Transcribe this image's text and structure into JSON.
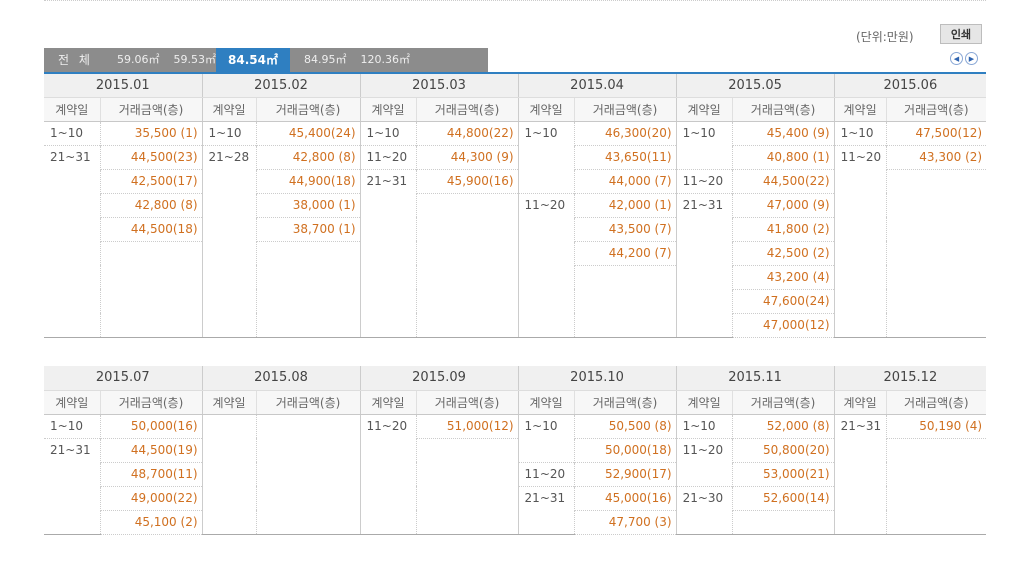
{
  "unit_label": "(단위:만원)",
  "print_label": "인쇄",
  "tabs": [
    {
      "label": "전 체",
      "active": false
    },
    {
      "label": "59.06㎡",
      "active": false
    },
    {
      "label": "59.53㎡",
      "active": false
    },
    {
      "label": "84.54㎡",
      "active": true
    },
    {
      "label": "84.95㎡",
      "active": false
    },
    {
      "label": "120.36㎡",
      "active": false
    }
  ],
  "sub_headers": {
    "day": "계약일",
    "price": "거래금액(층)"
  },
  "sections": [
    {
      "months": [
        {
          "month": "2015.01",
          "rows": [
            [
              "1~10",
              "35,500 (1)"
            ],
            [
              "21~31",
              "44,500(23)"
            ],
            [
              "",
              "42,500(17)"
            ],
            [
              "",
              "42,800 (8)"
            ],
            [
              "",
              "44,500(18)"
            ]
          ]
        },
        {
          "month": "2015.02",
          "rows": [
            [
              "1~10",
              "45,400(24)"
            ],
            [
              "21~28",
              "42,800 (8)"
            ],
            [
              "",
              "44,900(18)"
            ],
            [
              "",
              "38,000 (1)"
            ],
            [
              "",
              "38,700 (1)"
            ]
          ]
        },
        {
          "month": "2015.03",
          "rows": [
            [
              "1~10",
              "44,800(22)"
            ],
            [
              "11~20",
              "44,300 (9)"
            ],
            [
              "21~31",
              "45,900(16)"
            ]
          ]
        },
        {
          "month": "2015.04",
          "rows": [
            [
              "1~10",
              "46,300(20)"
            ],
            [
              "",
              "43,650(11)"
            ],
            [
              "",
              "44,000 (7)"
            ],
            [
              "11~20",
              "42,000 (1)"
            ],
            [
              "",
              "43,500 (7)"
            ],
            [
              "",
              "44,200 (7)"
            ]
          ]
        },
        {
          "month": "2015.05",
          "rows": [
            [
              "1~10",
              "45,400 (9)"
            ],
            [
              "",
              "40,800 (1)"
            ],
            [
              "11~20",
              "44,500(22)"
            ],
            [
              "21~31",
              "47,000 (9)"
            ],
            [
              "",
              "41,800 (2)"
            ],
            [
              "",
              "42,500 (2)"
            ],
            [
              "",
              "43,200 (4)"
            ],
            [
              "",
              "47,600(24)"
            ],
            [
              "",
              "47,000(12)"
            ]
          ]
        },
        {
          "month": "2015.06",
          "rows": [
            [
              "1~10",
              "47,500(12)"
            ],
            [
              "11~20",
              "43,300 (2)"
            ]
          ]
        }
      ]
    },
    {
      "months": [
        {
          "month": "2015.07",
          "rows": [
            [
              "1~10",
              "50,000(16)"
            ],
            [
              "21~31",
              "44,500(19)"
            ],
            [
              "",
              "48,700(11)"
            ],
            [
              "",
              "49,000(22)"
            ],
            [
              "",
              "45,100 (2)"
            ]
          ]
        },
        {
          "month": "2015.08",
          "rows": []
        },
        {
          "month": "2015.09",
          "rows": [
            [
              "11~20",
              "51,000(12)"
            ]
          ]
        },
        {
          "month": "2015.10",
          "rows": [
            [
              "1~10",
              "50,500 (8)"
            ],
            [
              "",
              "50,000(18)"
            ],
            [
              "11~20",
              "52,900(17)"
            ],
            [
              "21~31",
              "45,000(16)"
            ],
            [
              "",
              "47,700 (3)"
            ]
          ]
        },
        {
          "month": "2015.11",
          "rows": [
            [
              "1~10",
              "52,000 (8)"
            ],
            [
              "11~20",
              "50,800(20)"
            ],
            [
              "",
              "53,000(21)"
            ],
            [
              "21~30",
              "52,600(14)"
            ]
          ]
        },
        {
          "month": "2015.12",
          "rows": [
            [
              "21~31",
              "50,190 (4)"
            ]
          ]
        }
      ]
    }
  ],
  "colors": {
    "accent": "#2f7fc1",
    "price": "#d07020",
    "tab_bg": "#8c8c8c"
  }
}
